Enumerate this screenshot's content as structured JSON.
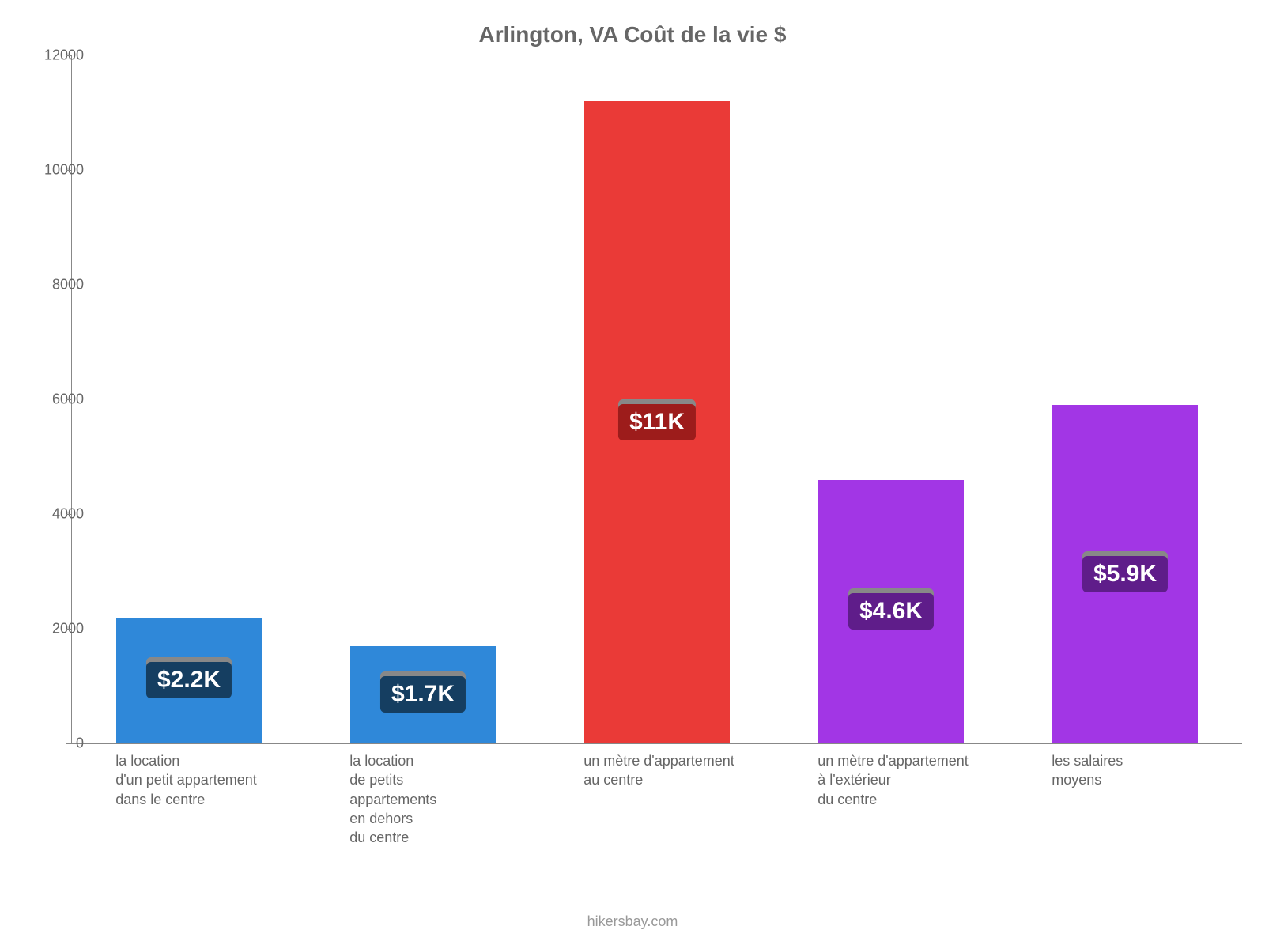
{
  "chart": {
    "type": "bar",
    "title": "Arlington, VA Coût de la vie $",
    "title_color": "#666666",
    "title_fontsize": 28,
    "background_color": "#ffffff",
    "axis_color": "#888888",
    "ylim": [
      0,
      12000
    ],
    "yticks": [
      0,
      2000,
      4000,
      6000,
      8000,
      10000,
      12000
    ],
    "ytick_color": "#666666",
    "ytick_fontsize": 18,
    "xlabel_color": "#666666",
    "xlabel_fontsize": 18,
    "bar_width_ratio": 0.62,
    "value_label_fontsize": 30,
    "value_label_text_color": "#ffffff",
    "footer": "hikersbay.com",
    "footer_color": "#999999",
    "bars": [
      {
        "category": "la location\nd'un petit appartement\ndans le centre",
        "value": 2200,
        "display_value": "$2.2K",
        "bar_color": "#2f88d9",
        "label_bg_color": "#153e61",
        "label_shadow_color": "#888888"
      },
      {
        "category": "la location\nde petits\nappartements\nen dehors\ndu centre",
        "value": 1700,
        "display_value": "$1.7K",
        "bar_color": "#2f88d9",
        "label_bg_color": "#153e61",
        "label_shadow_color": "#888888"
      },
      {
        "category": "un mètre d'appartement\nau centre",
        "value": 11200,
        "display_value": "$11K",
        "bar_color": "#ea3a37",
        "label_bg_color": "#9d1c1b",
        "label_shadow_color": "#888888"
      },
      {
        "category": "un mètre d'appartement\nà l'extérieur\ndu centre",
        "value": 4600,
        "display_value": "$4.6K",
        "bar_color": "#a236e5",
        "label_bg_color": "#5f1d8a",
        "label_shadow_color": "#888888"
      },
      {
        "category": "les salaires\nmoyens",
        "value": 5900,
        "display_value": "$5.9K",
        "bar_color": "#a236e5",
        "label_bg_color": "#5f1d8a",
        "label_shadow_color": "#888888"
      }
    ]
  }
}
